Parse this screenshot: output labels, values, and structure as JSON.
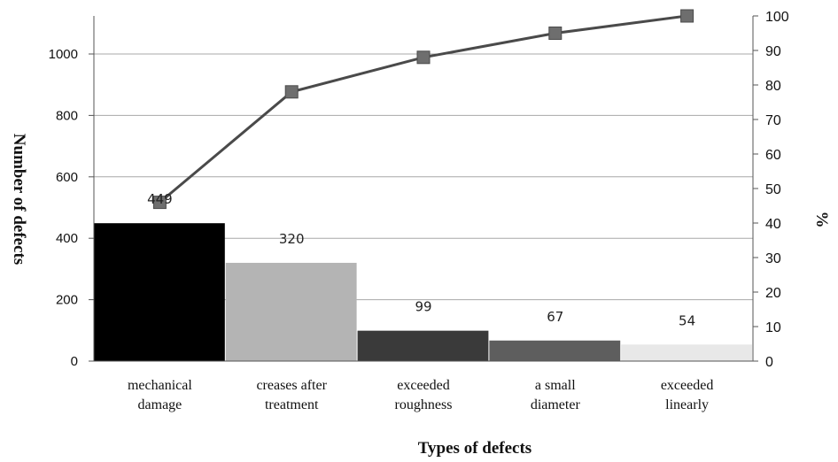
{
  "chart_data": {
    "type": "bar",
    "xlabel": "Types of defects",
    "ylabel": "Number of defects",
    "y2label": "%",
    "categories": [
      [
        "mechanical",
        "damage"
      ],
      [
        "creases after",
        "treatment"
      ],
      [
        "exceeded",
        "roughness"
      ],
      [
        "a small",
        "diameter"
      ],
      [
        "exceeded",
        "linearly"
      ]
    ],
    "series": [
      {
        "type": "bar",
        "axis": "left",
        "values": [
          449,
          320,
          99,
          67,
          54
        ],
        "colors": [
          "#000000",
          "#b4b4b4",
          "#3a3a3a",
          "#5e5e5e",
          "#e8e8e8"
        ]
      },
      {
        "type": "line",
        "axis": "right",
        "marker": "square",
        "values": [
          46,
          78,
          88,
          95,
          100
        ],
        "color": "#4a4a4a"
      }
    ],
    "ylim": [
      0,
      1100
    ],
    "yticks": [
      0,
      200,
      400,
      600,
      800,
      1000
    ],
    "y2lim": [
      0,
      100
    ],
    "y2ticks": [
      0,
      10,
      20,
      30,
      40,
      50,
      60,
      70,
      80,
      90,
      100
    ],
    "grid": true
  }
}
